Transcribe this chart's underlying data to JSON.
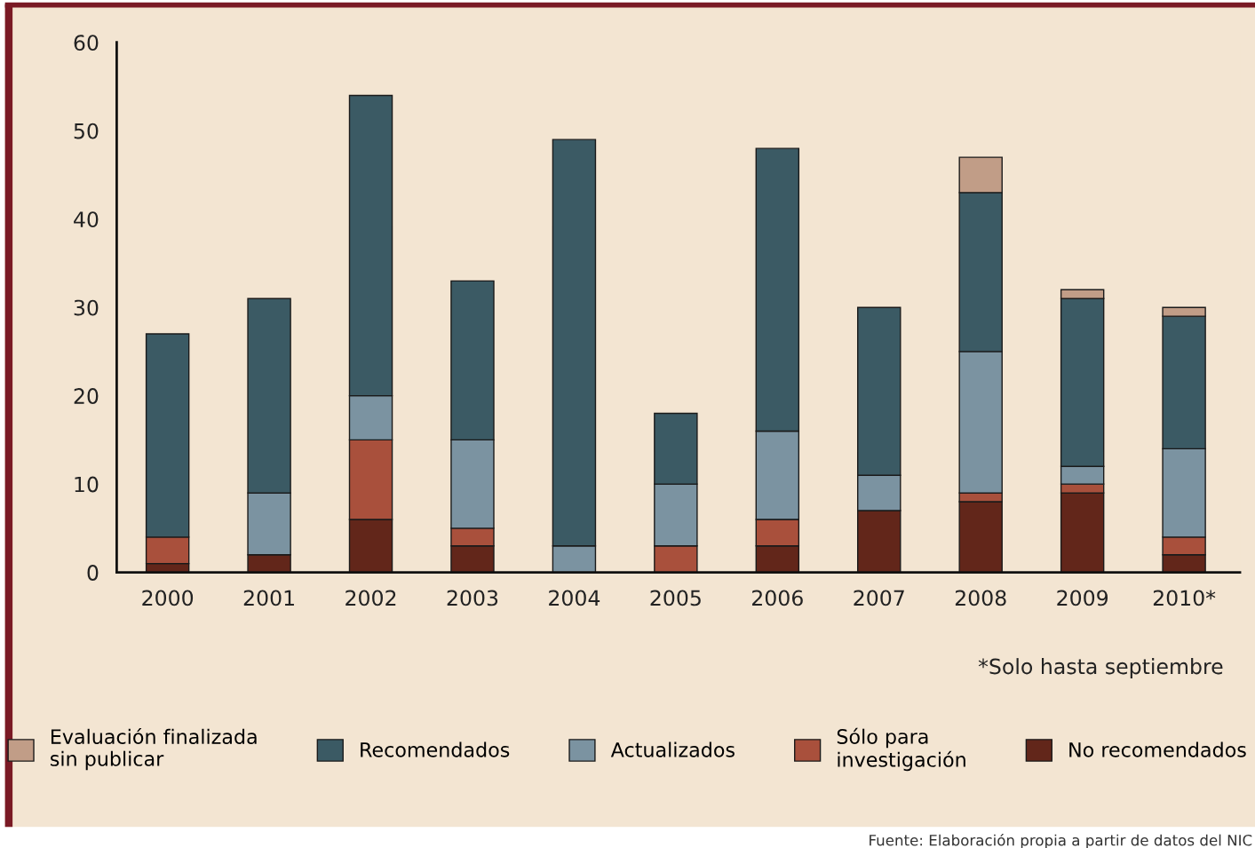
{
  "chart_data": {
    "type": "bar",
    "stacked": true,
    "categories": [
      "2000",
      "2001",
      "2002",
      "2003",
      "2004",
      "2005",
      "2006",
      "2007",
      "2008",
      "2009",
      "2010*"
    ],
    "series": [
      {
        "name": "No recomendados",
        "color": "#62261a",
        "values": [
          1,
          2,
          6,
          3,
          0,
          0,
          3,
          7,
          8,
          9,
          2
        ]
      },
      {
        "name": "Sólo para\ninvestigación",
        "color": "#a9503c",
        "values": [
          3,
          0,
          9,
          2,
          0,
          3,
          3,
          0,
          1,
          1,
          2
        ]
      },
      {
        "name": "Actualizados",
        "color": "#7b93a1",
        "values": [
          0,
          7,
          5,
          10,
          3,
          7,
          10,
          4,
          16,
          2,
          10
        ]
      },
      {
        "name": "Recomendados",
        "color": "#3b5a64",
        "values": [
          23,
          22,
          34,
          18,
          46,
          8,
          32,
          19,
          18,
          19,
          15
        ]
      },
      {
        "name": "Evaluación finalizada\nsin publicar",
        "color": "#c19d87",
        "values": [
          0,
          0,
          0,
          0,
          0,
          0,
          0,
          0,
          4,
          1,
          1
        ]
      }
    ],
    "ylim": [
      0,
      60
    ],
    "yticks": [
      0,
      10,
      20,
      30,
      40,
      50,
      60
    ],
    "grid": false,
    "legend": "bottom",
    "annotations": [
      "*Solo hasta septiembre",
      "Fuente: Elaboración propia a partir de datos del NIC"
    ]
  }
}
